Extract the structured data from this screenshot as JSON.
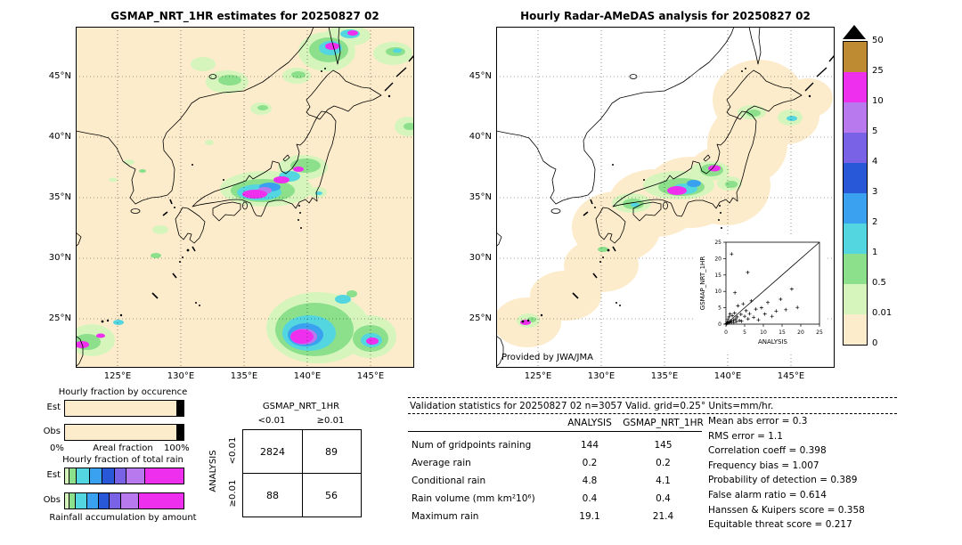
{
  "chart_data": [
    {
      "id": "gsmap-precip-map",
      "type": "heatmap",
      "title": "GSMAP_NRT_1HR estimates for 20250827 02",
      "x_ticks": [
        "125°E",
        "130°E",
        "135°E",
        "140°E",
        "145°E"
      ],
      "y_ticks": [
        "45°N",
        "40°N",
        "35°N",
        "30°N",
        "25°N"
      ],
      "description": "GSMaP satellite hourly precipitation field over Japan region, shaded by rain-rate scale"
    },
    {
      "id": "radar-precip-map",
      "type": "heatmap",
      "title": "Hourly Radar-AMeDAS analysis for 20250827 02",
      "x_ticks": [
        "125°E",
        "130°E",
        "135°E",
        "140°E",
        "145°E"
      ],
      "y_ticks": [
        "45°N",
        "40°N",
        "35°N",
        "30°N",
        "25°N"
      ],
      "credit": "Provided by JWA/JMA",
      "description": "Radar-AMeDAS analyzed hourly precipitation, pale shading marks radar coverage area"
    },
    {
      "id": "gsmap-vs-analysis-scatter",
      "type": "scatter",
      "xlabel": "ANALYSIS",
      "ylabel": "GSMAP_NRT_1HR",
      "xlim": [
        0,
        25
      ],
      "ylim": [
        0,
        25
      ],
      "x_ticks": [
        0,
        5,
        10,
        15,
        20,
        25
      ],
      "y_ticks": [
        0,
        5,
        10,
        15,
        20,
        25
      ],
      "diagonal_line": true,
      "points": [
        [
          0.1,
          0.2
        ],
        [
          0.2,
          0.1
        ],
        [
          0.3,
          0.6
        ],
        [
          0.4,
          0.3
        ],
        [
          0.5,
          1.4
        ],
        [
          0.6,
          0.4
        ],
        [
          0.8,
          2.2
        ],
        [
          0.9,
          0.7
        ],
        [
          1,
          0.4
        ],
        [
          1.1,
          3.1
        ],
        [
          1.3,
          1
        ],
        [
          1.5,
          0.6
        ],
        [
          1.5,
          21.4
        ],
        [
          1.7,
          2.6
        ],
        [
          2,
          1.2
        ],
        [
          2.1,
          0.5
        ],
        [
          2.3,
          3.4
        ],
        [
          2.4,
          9.6
        ],
        [
          2.6,
          1.6
        ],
        [
          2.8,
          0.8
        ],
        [
          3,
          2.2
        ],
        [
          3.2,
          5.6
        ],
        [
          3.6,
          1.1
        ],
        [
          4,
          3
        ],
        [
          4.2,
          0.9
        ],
        [
          4.6,
          6.2
        ],
        [
          5,
          2.4
        ],
        [
          5.4,
          4.1
        ],
        [
          5.8,
          15.8
        ],
        [
          5.9,
          1.6
        ],
        [
          6.3,
          3.2
        ],
        [
          6.8,
          7.1
        ],
        [
          7.4,
          2.1
        ],
        [
          8,
          4.6
        ],
        [
          8.7,
          1.3
        ],
        [
          9.5,
          5
        ],
        [
          10.4,
          3.1
        ],
        [
          11.2,
          6.6
        ],
        [
          12.3,
          2.4
        ],
        [
          13.4,
          4
        ],
        [
          14.6,
          7.6
        ],
        [
          16,
          4.4
        ],
        [
          17.6,
          10.7
        ],
        [
          19.1,
          5.1
        ]
      ]
    },
    {
      "id": "rain-rate-colorbar",
      "type": "heatmap",
      "levels_top_to_bottom": [
        "50",
        "25",
        "10",
        "5",
        "4",
        "3",
        "2",
        "1",
        "0.5",
        "0.01",
        "0"
      ],
      "segment_colors_top_to_bottom": [
        "#be8a32",
        "#ee30ee",
        "#b878ee",
        "#7a62e6",
        "#2858d8",
        "#3aa0f0",
        "#54d6e0",
        "#8ce08c",
        "#d6f5bc",
        "#fdeccb"
      ],
      "overflow_marker": "black-triangle-above"
    },
    {
      "id": "occurrence-fractions",
      "type": "bar",
      "stacked": true,
      "title": "Hourly fraction by occurence",
      "xlabel": "Areal fraction",
      "x_range": [
        "0%",
        "100%"
      ],
      "series": [
        {
          "name": "Est",
          "segments": [
            {
              "level": "0-0.01",
              "color": "#fdeccb",
              "pct": 95.2
            },
            {
              "level": "0.01-0.5",
              "color": "#d6f5bc",
              "pct": 1.1
            },
            {
              "level": "0.5-1",
              "color": "#8ce08c",
              "pct": 0.8
            },
            {
              "level": "1-2",
              "color": "#54d6e0",
              "pct": 0.7
            },
            {
              "level": "2-3",
              "color": "#3aa0f0",
              "pct": 0.5
            },
            {
              "level": "3-4",
              "color": "#2858d8",
              "pct": 0.4
            },
            {
              "level": "4-5",
              "color": "#7a62e6",
              "pct": 0.3
            },
            {
              "level": "5-10",
              "color": "#b878ee",
              "pct": 0.5
            },
            {
              "level": "10-25",
              "color": "#ee30ee",
              "pct": 0.5
            }
          ]
        },
        {
          "name": "Obs",
          "segments": [
            {
              "level": "0-0.01",
              "color": "#fdeccb",
              "pct": 95.3
            },
            {
              "level": "0.01-0.5",
              "color": "#d6f5bc",
              "pct": 1.0
            },
            {
              "level": "0.5-1",
              "color": "#8ce08c",
              "pct": 0.7
            },
            {
              "level": "1-2",
              "color": "#54d6e0",
              "pct": 0.7
            },
            {
              "level": "2-3",
              "color": "#3aa0f0",
              "pct": 0.5
            },
            {
              "level": "3-4",
              "color": "#2858d8",
              "pct": 0.4
            },
            {
              "level": "4-5",
              "color": "#7a62e6",
              "pct": 0.35
            },
            {
              "level": "5-10",
              "color": "#b878ee",
              "pct": 0.45
            },
            {
              "level": "10-25",
              "color": "#ee30ee",
              "pct": 0.6
            }
          ]
        }
      ]
    },
    {
      "id": "total-rain-fractions",
      "type": "bar",
      "stacked": true,
      "title": "Hourly fraction of total rain",
      "xlabel": "Rainfall accumulation by amount",
      "series": [
        {
          "name": "Est",
          "segments": [
            {
              "level": "0.01-0.5",
              "color": "#d6f5bc",
              "pct": 3
            },
            {
              "level": "0.5-1",
              "color": "#8ce08c",
              "pct": 6
            },
            {
              "level": "1-2",
              "color": "#54d6e0",
              "pct": 11
            },
            {
              "level": "2-3",
              "color": "#3aa0f0",
              "pct": 11
            },
            {
              "level": "3-4",
              "color": "#2858d8",
              "pct": 10
            },
            {
              "level": "4-5",
              "color": "#7a62e6",
              "pct": 10
            },
            {
              "level": "5-10",
              "color": "#b878ee",
              "pct": 16
            },
            {
              "level": "10-25",
              "color": "#ee30ee",
              "pct": 33
            }
          ]
        },
        {
          "name": "Obs",
          "segments": [
            {
              "level": "0.01-0.5",
              "color": "#d6f5bc",
              "pct": 3
            },
            {
              "level": "0.5-1",
              "color": "#8ce08c",
              "pct": 5
            },
            {
              "level": "1-2",
              "color": "#54d6e0",
              "pct": 10
            },
            {
              "level": "2-3",
              "color": "#3aa0f0",
              "pct": 10
            },
            {
              "level": "3-4",
              "color": "#2858d8",
              "pct": 9
            },
            {
              "level": "4-5",
              "color": "#7a62e6",
              "pct": 10
            },
            {
              "level": "5-10",
              "color": "#b878ee",
              "pct": 15
            },
            {
              "level": "10-25",
              "color": "#ee30ee",
              "pct": 38
            }
          ]
        }
      ]
    },
    {
      "id": "contingency-table",
      "type": "table",
      "title": "GSMAP_NRT_1HR",
      "row_axis": "ANALYSIS",
      "columns": [
        "<0.01",
        "≥0.01"
      ],
      "rows": [
        "<0.01",
        "≥0.01"
      ],
      "values": [
        [
          2824,
          89
        ],
        [
          88,
          56
        ]
      ]
    },
    {
      "id": "validation-stats",
      "type": "table",
      "title": "Validation statistics for 20250827 02  n=3057 Valid. grid=0.25° Units=mm/hr.",
      "columns": [
        "ANALYSIS",
        "GSMAP_NRT_1HR"
      ],
      "rows": [
        {
          "label": "Num of gridpoints raining",
          "analysis": "144",
          "gsmap": "145"
        },
        {
          "label": "Average rain",
          "analysis": "0.2",
          "gsmap": "0.2"
        },
        {
          "label": "Conditional rain",
          "analysis": "4.8",
          "gsmap": "4.1"
        },
        {
          "label": "Rain volume (mm km²10⁶)",
          "analysis": "0.4",
          "gsmap": "0.4"
        },
        {
          "label": "Maximum rain",
          "analysis": "19.1",
          "gsmap": "21.4"
        }
      ],
      "metrics": [
        {
          "label": "Mean abs error",
          "value": "0.3"
        },
        {
          "label": "RMS error",
          "value": "1.1"
        },
        {
          "label": "Correlation coeff",
          "value": "0.398"
        },
        {
          "label": "Frequency bias",
          "value": "1.007"
        },
        {
          "label": "Probability of detection",
          "value": "0.389"
        },
        {
          "label": "False alarm ratio",
          "value": "0.614"
        },
        {
          "label": "Hanssen & Kuipers score",
          "value": "0.358"
        },
        {
          "label": "Equitable threat score",
          "value": "0.217"
        }
      ]
    }
  ]
}
